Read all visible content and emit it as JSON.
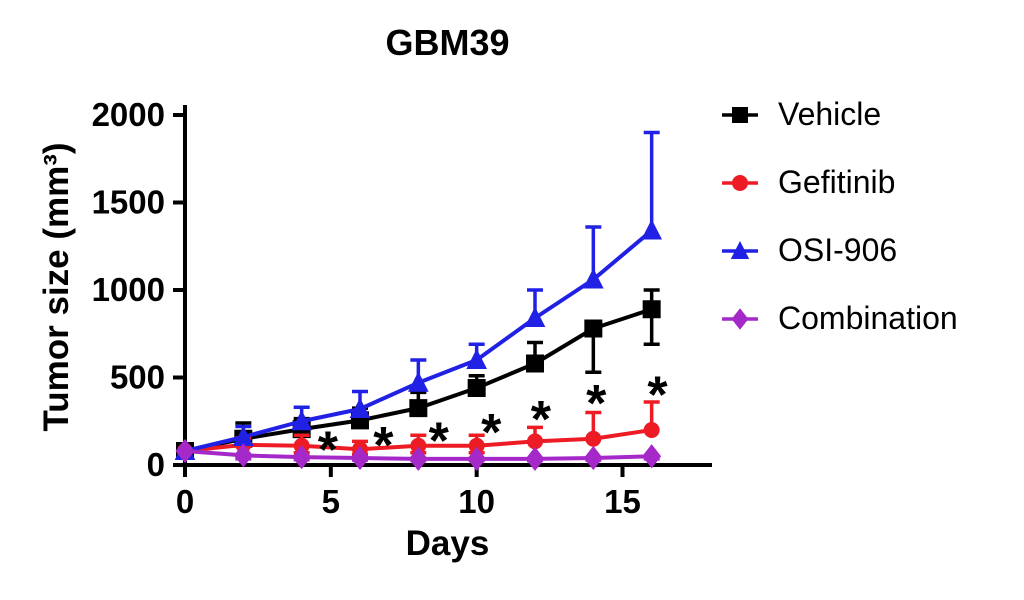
{
  "chart_data": {
    "type": "line",
    "title": "GBM39",
    "xlabel": "Days",
    "ylabel": "Tumor size (mm³)",
    "xlim": [
      0,
      18
    ],
    "ylim": [
      0,
      2000
    ],
    "xticks": [
      0,
      5,
      10,
      15
    ],
    "yticks": [
      0,
      500,
      1000,
      1500,
      2000
    ],
    "grid": false,
    "legend_position": "right",
    "x": [
      0,
      2,
      4,
      6,
      8,
      10,
      12,
      14,
      16
    ],
    "series": [
      {
        "name": "Vehicle",
        "color": "#000000",
        "marker": "square",
        "values": [
          80,
          150,
          205,
          255,
          325,
          440,
          580,
          780,
          890
        ],
        "err_up": [
          0,
          90,
          60,
          70,
          90,
          70,
          120,
          0,
          110
        ],
        "err_down": [
          0,
          0,
          0,
          0,
          0,
          0,
          0,
          250,
          200
        ]
      },
      {
        "name": "Gefitinib",
        "color": "#ED1C24",
        "marker": "circle",
        "values": [
          80,
          115,
          110,
          90,
          110,
          110,
          135,
          150,
          200
        ],
        "err_up": [
          0,
          40,
          60,
          45,
          60,
          60,
          80,
          150,
          160
        ],
        "err_down": [
          0,
          0,
          40,
          30,
          40,
          40,
          0,
          0,
          0
        ]
      },
      {
        "name": "OSI-906",
        "color": "#2121E5",
        "marker": "triangle",
        "values": [
          80,
          160,
          250,
          320,
          470,
          600,
          840,
          1060,
          1340
        ],
        "err_up": [
          0,
          60,
          80,
          100,
          130,
          90,
          160,
          300,
          560
        ],
        "err_down": [
          0,
          0,
          0,
          0,
          0,
          0,
          0,
          0,
          0
        ]
      },
      {
        "name": "Combination",
        "color": "#A429C8",
        "marker": "diamond",
        "values": [
          80,
          55,
          45,
          40,
          35,
          35,
          35,
          40,
          50
        ],
        "err_up": [
          0,
          0,
          0,
          0,
          0,
          0,
          0,
          0,
          0
        ],
        "err_down": [
          0,
          20,
          15,
          12,
          10,
          10,
          10,
          12,
          15
        ]
      }
    ],
    "annotations": [
      {
        "text": "*",
        "x": 4.9,
        "y": 135
      },
      {
        "text": "*",
        "x": 6.8,
        "y": 160
      },
      {
        "text": "*",
        "x": 8.7,
        "y": 185
      },
      {
        "text": "*",
        "x": 10.5,
        "y": 235
      },
      {
        "text": "*",
        "x": 12.2,
        "y": 310
      },
      {
        "text": "*",
        "x": 14.1,
        "y": 400
      },
      {
        "text": "*",
        "x": 16.2,
        "y": 450
      }
    ]
  }
}
